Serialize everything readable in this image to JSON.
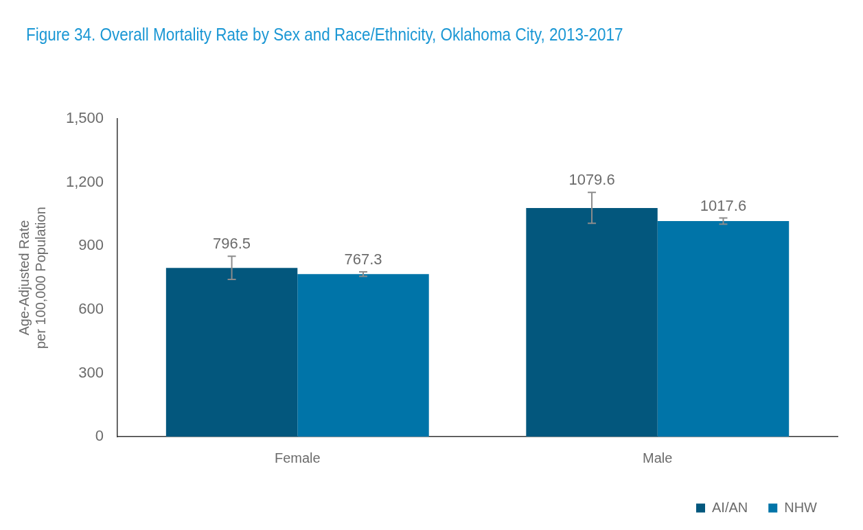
{
  "chart_data": {
    "type": "bar",
    "title": "Figure 34. Overall Mortality Rate by Sex and Race/Ethnicity, Oklahoma City, 2013-2017",
    "ylabel": "Age-Adjusted Rate\nper 100,000 Population",
    "categories": [
      "Female",
      "Male"
    ],
    "series": [
      {
        "name": "AI/AN",
        "color": "#03577d",
        "values": [
          796.5,
          1079.6
        ],
        "errors": [
          [
            742,
            852
          ],
          [
            1007,
            1153
          ]
        ]
      },
      {
        "name": "NHW",
        "color": "#0074a8",
        "values": [
          767.3,
          1017.6
        ],
        "errors": [
          [
            757,
            778
          ],
          [
            1003,
            1032
          ]
        ]
      }
    ],
    "ylim": [
      0,
      1500
    ],
    "yticks": [
      0,
      300,
      600,
      900,
      {
        "value": 1200,
        "label": "1,200"
      },
      {
        "value": 1500,
        "label": "1,500"
      }
    ],
    "grid": false,
    "legend": "bottom right",
    "data_labels": true
  }
}
